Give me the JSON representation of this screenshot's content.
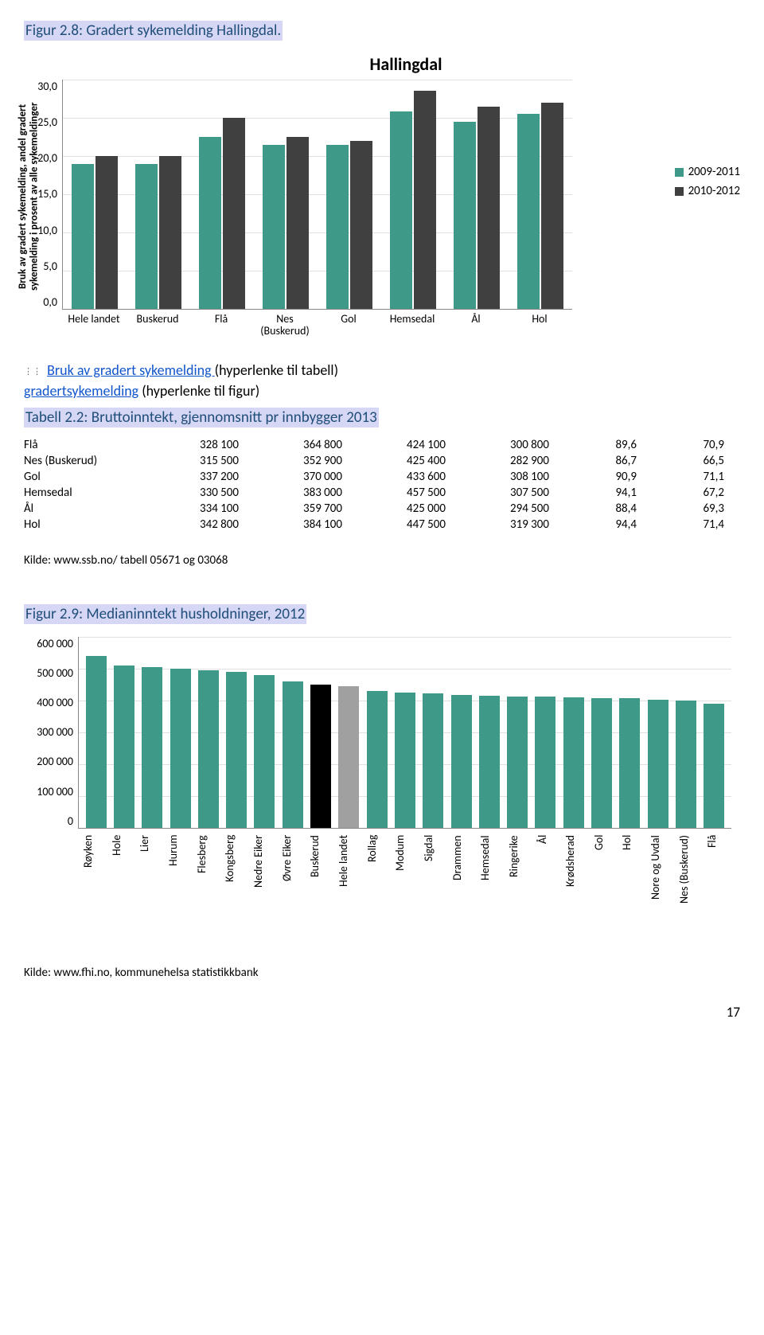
{
  "page_number": "17",
  "headings": {
    "fig28": "Figur 2.8: Gradert sykemelding Hallingdal.",
    "tab22": "Tabell 2.2: Bruttoinntekt, gjennomsnitt pr innbygger 2013",
    "fig29": "Figur 2.9: Medianinntekt husholdninger, 2012"
  },
  "links": {
    "l1_u": "Bruk av gradert sykemelding ",
    "l1_t": "(hyperlenke til tabell)",
    "l2_u": "gradertsykemelding",
    "l2_t": " (hyperlenke til figur)"
  },
  "chart1": {
    "title": "Hallingdal",
    "ylabel": "Bruk av gradert sykemelding, andel gradert\nsykemelding i prosent av alle sykemeldinger",
    "ymax": 30,
    "ytick_step": 5,
    "yticks": [
      "30,0",
      "25,0",
      "20,0",
      "15,0",
      "10,0",
      "5,0",
      "0,0"
    ],
    "categories": [
      "Hele landet",
      "Buskerud",
      "Flå",
      "Nes\n(Buskerud)",
      "Gol",
      "Hemsedal",
      "Ål",
      "Hol"
    ],
    "series": [
      {
        "label": "2009-2011",
        "color": "#3f9988",
        "values": [
          19.0,
          19.0,
          22.5,
          21.5,
          21.5,
          25.8,
          24.5,
          25.5
        ]
      },
      {
        "label": "2010-2012",
        "color": "#404040",
        "values": [
          20.0,
          20.0,
          25.0,
          22.5,
          22.0,
          28.5,
          26.5,
          27.0
        ]
      }
    ],
    "bg": "#ffffff",
    "grid_color": "#e0e0e0"
  },
  "table": {
    "rows": [
      {
        "name": "Flå",
        "c1": "328 100",
        "c2": "364 800",
        "c3": "424 100",
        "c4": "300 800",
        "c5": "89,6",
        "c6": "70,9"
      },
      {
        "name": "Nes (Buskerud)",
        "c1": "315 500",
        "c2": "352 900",
        "c3": "425 400",
        "c4": "282 900",
        "c5": "86,7",
        "c6": "66,5"
      },
      {
        "name": "Gol",
        "c1": "337 200",
        "c2": "370 000",
        "c3": "433 600",
        "c4": "308 100",
        "c5": "90,9",
        "c6": "71,1"
      },
      {
        "name": "Hemsedal",
        "c1": "330 500",
        "c2": "383 000",
        "c3": "457 500",
        "c4": "307 500",
        "c5": "94,1",
        "c6": "67,2"
      },
      {
        "name": "Ål",
        "c1": "334 100",
        "c2": "359 700",
        "c3": "425 000",
        "c4": "294 500",
        "c5": "88,4",
        "c6": "69,3"
      },
      {
        "name": "Hol",
        "c1": "342 800",
        "c2": "384 100",
        "c3": "447 500",
        "c4": "319 300",
        "c5": "94,4",
        "c6": "71,4"
      }
    ],
    "source": "Kilde: www.ssb.no/ tabell 05671 og 03068"
  },
  "chart2": {
    "ymax": 600000,
    "ytick_step": 100000,
    "yticks": [
      "600 000",
      "500 000",
      "400 000",
      "300 000",
      "200 000",
      "100 000",
      "0"
    ],
    "default_color": "#3f9988",
    "grid_color": "#e0e0e0",
    "bars": [
      {
        "label": "Røyken",
        "value": 540000
      },
      {
        "label": "Hole",
        "value": 510000
      },
      {
        "label": "Lier",
        "value": 505000
      },
      {
        "label": "Hurum",
        "value": 500000
      },
      {
        "label": "Flesberg",
        "value": 495000
      },
      {
        "label": "Kongsberg",
        "value": 490000
      },
      {
        "label": "Nedre Eiker",
        "value": 480000
      },
      {
        "label": "Øvre Eiker",
        "value": 460000
      },
      {
        "label": "Buskerud",
        "value": 450000,
        "color": "#000000"
      },
      {
        "label": "Hele landet",
        "value": 445000,
        "color": "#a0a0a0"
      },
      {
        "label": "Rollag",
        "value": 430000
      },
      {
        "label": "Modum",
        "value": 425000
      },
      {
        "label": "Sigdal",
        "value": 422000
      },
      {
        "label": "Drammen",
        "value": 418000
      },
      {
        "label": "Hemsedal",
        "value": 415000
      },
      {
        "label": "Ringerike",
        "value": 413000
      },
      {
        "label": "Ål",
        "value": 412000
      },
      {
        "label": "Krødsherad",
        "value": 410000
      },
      {
        "label": "Gol",
        "value": 408000
      },
      {
        "label": "Hol",
        "value": 406000
      },
      {
        "label": "Nore og Uvdal",
        "value": 402000
      },
      {
        "label": "Nes (Buskerud)",
        "value": 400000
      },
      {
        "label": "Flå",
        "value": 390000
      }
    ],
    "source": "Kilde: www.fhi.no, kommunehelsa statistikkbank"
  }
}
